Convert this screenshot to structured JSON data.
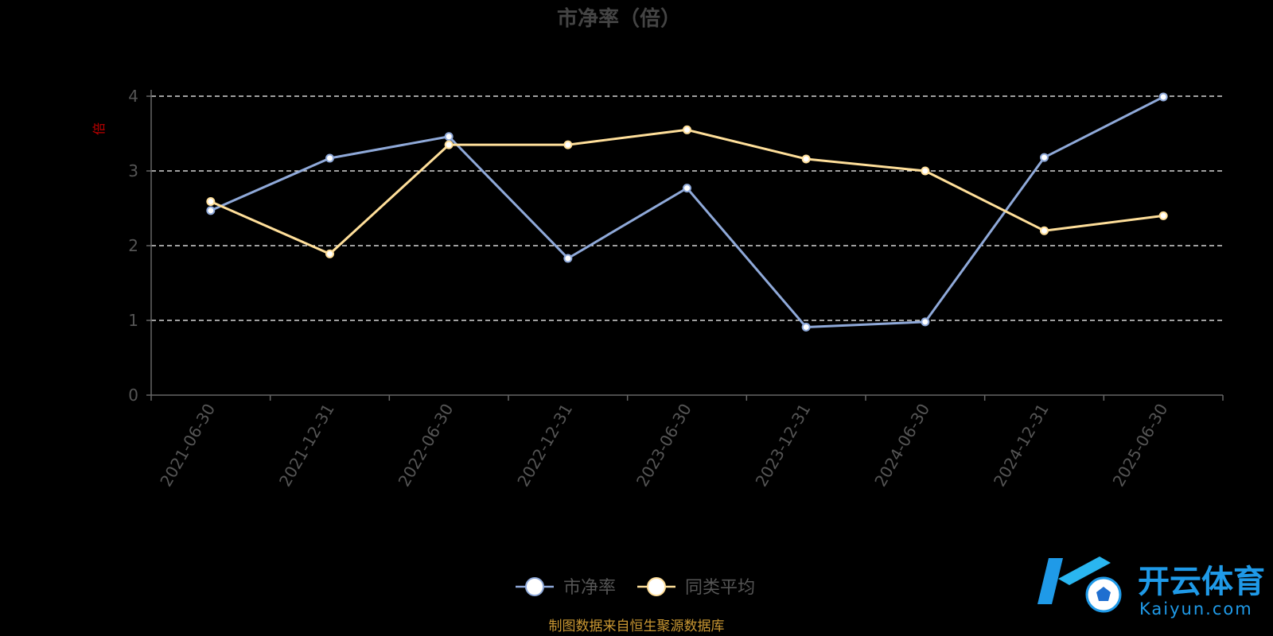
{
  "colors": {
    "series1": "#8fa9d9",
    "series2": "#ffdf9a",
    "axis": "#666666",
    "grid": "#ffffff",
    "ylabel": "#c00000",
    "source": "#c89632",
    "logo": "#1f9ae8"
  },
  "chart_data": {
    "type": "line",
    "title": "市净率（倍）",
    "ylabel": "倍",
    "ylim": [
      0,
      4
    ],
    "yticks": [
      0,
      1,
      2,
      3,
      4
    ],
    "grid": true,
    "legend_position": "bottom-center",
    "categories": [
      "2021-06-30",
      "2021-12-31",
      "2022-06-30",
      "2022-12-31",
      "2023-06-30",
      "2023-12-31",
      "2024-06-30",
      "2024-12-31",
      "2025-06-30"
    ],
    "series": [
      {
        "name": "市净率",
        "values": [
          2.47,
          3.17,
          3.46,
          1.83,
          2.77,
          0.91,
          0.98,
          3.18,
          3.99
        ]
      },
      {
        "name": "同类平均",
        "values": [
          2.59,
          1.89,
          3.35,
          3.35,
          3.55,
          3.16,
          3.0,
          2.2,
          2.4
        ]
      }
    ]
  },
  "source_text": "制图数据来自恒生聚源数据库",
  "watermark": {
    "brand": "开云体育",
    "site": "Kaiyun.com"
  }
}
